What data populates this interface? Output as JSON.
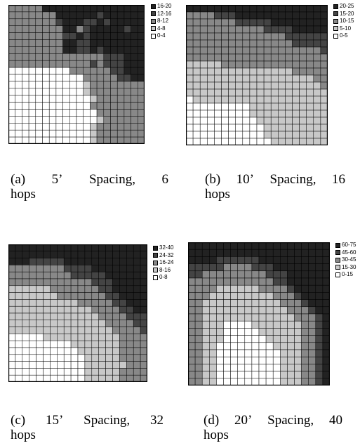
{
  "figure": {
    "panels": [
      {
        "id": "a",
        "caption": {
          "line1": [
            "(a)",
            "5’",
            "Spacing,",
            "6"
          ],
          "line2": "hops"
        },
        "legend": [
          {
            "label": "16-20",
            "color": "#222222"
          },
          {
            "label": "12-16",
            "color": "#444444"
          },
          {
            "label": "8-12",
            "color": "#888888"
          },
          {
            "label": "4-8",
            "color": "#c8c8c8"
          },
          {
            "label": "0-4",
            "color": "#ffffff"
          }
        ],
        "grid": [
          "22222444444444444444",
          "22222224444443444444",
          "22222223444334344444",
          "22222222442344444344",
          "22222222334344444444",
          "22222222443344444444",
          "22222222443343444444",
          "22222222222222333444",
          "22222222222232333444",
          "00000000022222233444",
          "00000000000222223344",
          "00000000000122222222",
          "00000000000122222222",
          "00000000000012222222",
          "00000000000022222222",
          "00000000000002222222",
          "00000000000001222222",
          "00000000000012222222",
          "00000000000012222222",
          "00000000000012222222"
        ]
      },
      {
        "id": "b",
        "caption": {
          "line1": [
            "(b)",
            "10’",
            "Spacing,",
            "16"
          ],
          "line2": "hops"
        },
        "legend": [
          {
            "label": "20-25",
            "color": "#222222"
          },
          {
            "label": "15-20",
            "color": "#444444"
          },
          {
            "label": "10-15",
            "color": "#888888"
          },
          {
            "label": "5-10",
            "color": "#c8c8c8"
          },
          {
            "label": "0-5",
            "color": "#ffffff"
          }
        ],
        "grid": [
          "44444444444444444444",
          "22223334444444444444",
          "22222223333344444444",
          "22222222222333344444",
          "22222222222222333333",
          "22222222222222233333",
          "22222222222222222223",
          "22222222222222222222",
          "11111222222222222222",
          "11111111111111122222",
          "11111111111111111122",
          "11111111111111111112",
          "11111111111111111111",
          "01111111111111111111",
          "00000000011111111111",
          "00000000011111111111",
          "00000000001111111111",
          "00000000000111111111",
          "00000000000111111111",
          "00000000000011111111"
        ]
      },
      {
        "id": "c",
        "caption": {
          "line1": [
            "(c)",
            "15’",
            "Spacing,",
            "32"
          ],
          "line2": "hops"
        },
        "legend": [
          {
            "label": "32-40",
            "color": "#222222"
          },
          {
            "label": "24-32",
            "color": "#444444"
          },
          {
            "label": "16-24",
            "color": "#888888"
          },
          {
            "label": "8-16",
            "color": "#c8c8c8"
          },
          {
            "label": "0-8",
            "color": "#ffffff"
          }
        ],
        "grid": [
          "44444444444444444444",
          "44444444444444444444",
          "44433333444444444444",
          "22222222333344444444",
          "22222222233333444444",
          "22222222222233344444",
          "11111122222223344444",
          "11111112222222334444",
          "11111111112222233444",
          "11111111111122223344",
          "11111111111112222333",
          "11111111111111222233",
          "11111111111111122223",
          "00000111111111112222",
          "00000000011111112222",
          "00000000001111112222",
          "00000000000111112222",
          "00000000000111111222",
          "00000000000111112222",
          "00000000000111112222"
        ]
      },
      {
        "id": "d",
        "caption": {
          "line1": [
            "(d)",
            "20’",
            "Spacing,",
            "40"
          ],
          "line2": "hops"
        },
        "legend": [
          {
            "label": "60-75",
            "color": "#222222"
          },
          {
            "label": "45-60",
            "color": "#444444"
          },
          {
            "label": "30-45",
            "color": "#888888"
          },
          {
            "label": "15-30",
            "color": "#c8c8c8"
          },
          {
            "label": "0-15",
            "color": "#ffffff"
          }
        ],
        "grid": [
          "44444444444444444444",
          "44444444444444444444",
          "44443333334444444444",
          "33333222233344444444",
          "33222222222333444444",
          "22222222222233444444",
          "22221111112222344444",
          "22211111111122234444",
          "22111111111112223444",
          "22111111111111222344",
          "22111111111111122234",
          "22111000011111112234",
          "22111000001111112234",
          "22111000000111112234",
          "22110000000011112234",
          "22110000000001112234",
          "22110000000001112234",
          "22110000000001112234",
          "22110000000001112234",
          "22110000000001112234"
        ]
      }
    ]
  }
}
